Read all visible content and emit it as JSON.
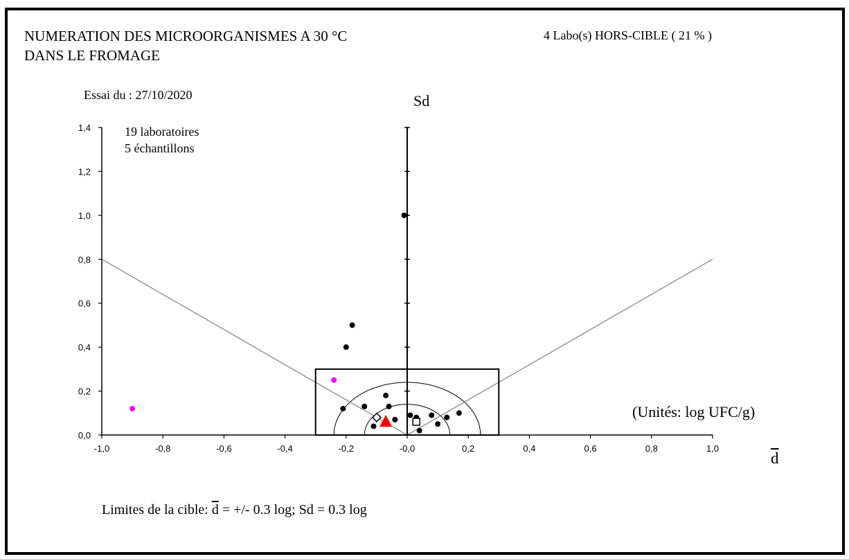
{
  "header": {
    "title_line1": "NUMERATION DES MICROORGANISMES A 30 °C",
    "title_line2": "DANS LE FROMAGE",
    "hors_cible": "4 Labo(s) HORS-CIBLE ( 21 % )",
    "essai": "Essai du : 27/10/2020",
    "n_labs": "19 laboratoires",
    "n_samples": "5 échantillons",
    "units": "(Unités:  log UFC/g)",
    "limits_prefix": "Limites de la cible: ",
    "limits_dbar": "d",
    "limits_suffix": " = +/-  0.3 log; Sd = 0.3 log"
  },
  "chart_data": {
    "type": "scatter",
    "title": "NUMERATION DES MICROORGANISMES A 30 °C DANS LE FROMAGE",
    "xlabel": "d",
    "ylabel": "Sd",
    "xlim": [
      -1.0,
      1.0
    ],
    "ylim": [
      0.0,
      1.4
    ],
    "x_ticks": [
      "-1,0",
      "-0,8",
      "-0,6",
      "-0,4",
      "-0,2",
      "-0,0",
      "0,2",
      "0,4",
      "0,6",
      "0,8",
      "1,0"
    ],
    "y_ticks": [
      "0,0",
      "0,2",
      "0,4",
      "0,6",
      "0,8",
      "1,0",
      "1,2",
      "1,4"
    ],
    "target_box": {
      "d_min": -0.3,
      "d_max": 0.3,
      "sd_max": 0.3
    },
    "series": [
      {
        "role": "in-or-near-target",
        "color": "#000000",
        "points": [
          {
            "x": -0.01,
            "y": 1.0
          },
          {
            "x": -0.18,
            "y": 0.5
          },
          {
            "x": -0.2,
            "y": 0.4
          },
          {
            "x": -0.21,
            "y": 0.12
          },
          {
            "x": -0.14,
            "y": 0.13
          },
          {
            "x": -0.07,
            "y": 0.18
          },
          {
            "x": -0.06,
            "y": 0.13
          },
          {
            "x": -0.11,
            "y": 0.04
          },
          {
            "x": -0.04,
            "y": 0.07
          },
          {
            "x": 0.01,
            "y": 0.09
          },
          {
            "x": 0.03,
            "y": 0.08
          },
          {
            "x": 0.04,
            "y": 0.02
          },
          {
            "x": 0.08,
            "y": 0.09
          },
          {
            "x": 0.1,
            "y": 0.05
          },
          {
            "x": 0.13,
            "y": 0.08
          },
          {
            "x": 0.17,
            "y": 0.1
          }
        ]
      },
      {
        "role": "outlier",
        "color": "#ff00ff",
        "points": [
          {
            "x": -0.9,
            "y": 0.12
          },
          {
            "x": -0.24,
            "y": 0.25
          }
        ]
      }
    ],
    "special_markers": [
      {
        "shape": "triangle",
        "color": "#ff0000",
        "x": -0.07,
        "y": 0.06
      },
      {
        "shape": "diamond",
        "color": "#000000",
        "x": -0.1,
        "y": 0.08
      },
      {
        "shape": "square",
        "color": "#000000",
        "x": 0.03,
        "y": 0.06
      }
    ]
  }
}
